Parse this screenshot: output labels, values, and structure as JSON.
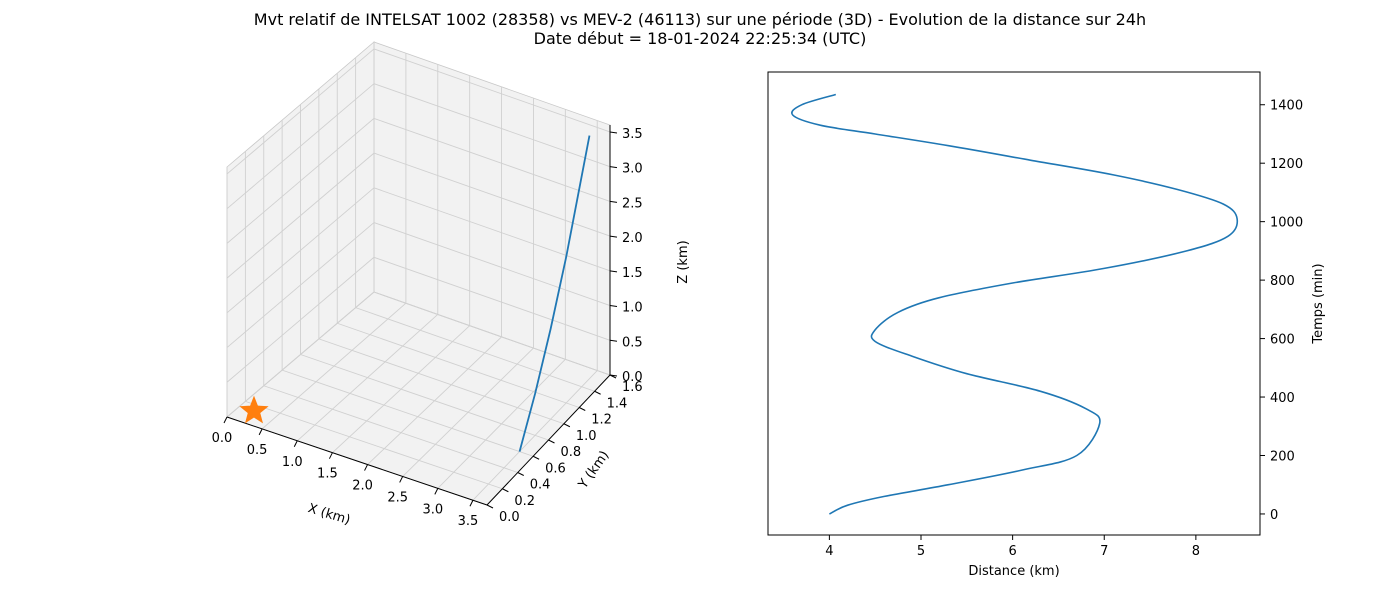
{
  "title_line1": "Mvt relatif de INTELSAT 1002 (28358) vs MEV-2 (46113) sur une période (3D) - Evolution de la distance sur 24h",
  "title_line2": "Date début = 18-01-2024 22:25:34 (UTC)",
  "chart_data": [
    {
      "type": "line3d",
      "xlabel": "X (km)",
      "ylabel": "Y (km)",
      "zlabel": "Z (km)",
      "xlim": [
        0,
        3.7
      ],
      "ylim": [
        0,
        1.6
      ],
      "zlim": [
        0,
        3.6
      ],
      "xticks": [
        "0.0",
        "0.5",
        "1.0",
        "1.5",
        "2.0",
        "2.5",
        "3.0",
        "3.5"
      ],
      "yticks": [
        "0.0",
        "0.2",
        "0.4",
        "0.6",
        "0.8",
        "1.0",
        "1.2",
        "1.4",
        "1.6"
      ],
      "zticks": [
        "0.0",
        "0.5",
        "1.0",
        "1.5",
        "2.0",
        "2.5",
        "3.0",
        "3.5"
      ],
      "grid": true,
      "series": [
        {
          "color": "#1f77b4",
          "points": [
            [
              3.5,
              0.6,
              0.0
            ],
            [
              3.5,
              0.8,
              0.6
            ],
            [
              3.5,
              1.0,
              1.3
            ],
            [
              3.5,
              1.2,
              2.1
            ],
            [
              3.5,
              1.35,
              2.8
            ],
            [
              3.5,
              1.5,
              3.5
            ]
          ]
        }
      ],
      "marker": {
        "shape": "star",
        "color": "#ff7f0e",
        "point": [
          0,
          0,
          0
        ]
      }
    },
    {
      "type": "line",
      "xlabel": "Distance (km)",
      "ylabel": "Temps (min)",
      "xlim": [
        3.33,
        8.7
      ],
      "ylim": [
        -72,
        1512
      ],
      "xticks": [
        4,
        5,
        6,
        7,
        8
      ],
      "yticks": [
        0,
        200,
        400,
        600,
        800,
        1000,
        1200,
        1400
      ],
      "y_axis_side": "right",
      "grid": false,
      "series": [
        {
          "color": "#1f77b4",
          "x": [
            4.0,
            4.2,
            4.6,
            5.3,
            6.1,
            6.7,
            6.95,
            6.8,
            6.3,
            5.5,
            4.9,
            4.5,
            4.5,
            4.75,
            5.2,
            6.0,
            7.0,
            7.9,
            8.35,
            8.45,
            8.3,
            7.8,
            7.1,
            6.2,
            5.3,
            4.5,
            3.9,
            3.6,
            3.7,
            4.07
          ],
          "y": [
            0,
            30,
            60,
            100,
            150,
            200,
            310,
            360,
            420,
            480,
            540,
            590,
            630,
            690,
            740,
            790,
            840,
            900,
            950,
            1010,
            1060,
            1110,
            1160,
            1210,
            1260,
            1300,
            1330,
            1365,
            1400,
            1435
          ]
        }
      ]
    }
  ]
}
